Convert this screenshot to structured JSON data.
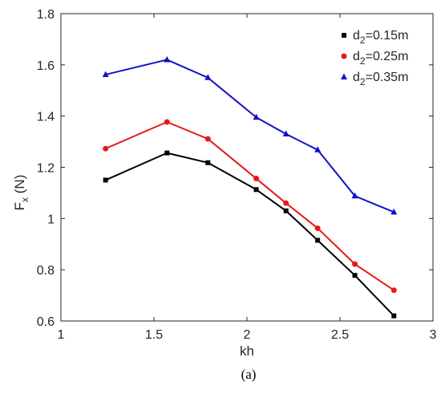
{
  "chart_data": {
    "type": "line",
    "xlabel": "kh",
    "ylabel": "F_x (N)",
    "xlim": [
      1,
      3
    ],
    "ylim": [
      0.6,
      1.8
    ],
    "xticks": [
      1,
      1.5,
      2,
      2.5,
      3
    ],
    "xtick_labels": [
      "1",
      "1.5",
      "2",
      "2.5",
      "3"
    ],
    "yticks": [
      0.6,
      0.8,
      1.0,
      1.2,
      1.4,
      1.6,
      1.8
    ],
    "ytick_labels": [
      "0.6",
      "0.8",
      "1",
      "1.2",
      "1.4",
      "1.6",
      "1.8"
    ],
    "grid": false,
    "legend_position": "top-right",
    "x": [
      1.24,
      1.57,
      1.79,
      2.05,
      2.21,
      2.38,
      2.58,
      2.79
    ],
    "series": [
      {
        "name": "d2=0.15m",
        "legend_label": {
          "base": "d",
          "sub": "2",
          "rest": "=0.15m"
        },
        "color": "#000000",
        "marker": "square",
        "values": [
          1.15,
          1.256,
          1.218,
          1.113,
          1.03,
          0.915,
          0.778,
          0.62
        ]
      },
      {
        "name": "d2=0.25m",
        "legend_label": {
          "base": "d",
          "sub": "2",
          "rest": "=0.25m"
        },
        "color": "#e31a1c",
        "marker": "circle",
        "values": [
          1.273,
          1.377,
          1.311,
          1.156,
          1.06,
          0.962,
          0.822,
          0.72
        ]
      },
      {
        "name": "d2=0.35m",
        "legend_label": {
          "base": "d",
          "sub": "2",
          "rest": "=0.35m"
        },
        "color": "#1010c8",
        "marker": "triangle",
        "values": [
          1.562,
          1.62,
          1.55,
          1.395,
          1.33,
          1.268,
          1.088,
          1.025
        ]
      }
    ]
  },
  "caption": "(a)",
  "ylabel_parts": {
    "base": "F",
    "sub": "x",
    "rest": " (N)"
  }
}
